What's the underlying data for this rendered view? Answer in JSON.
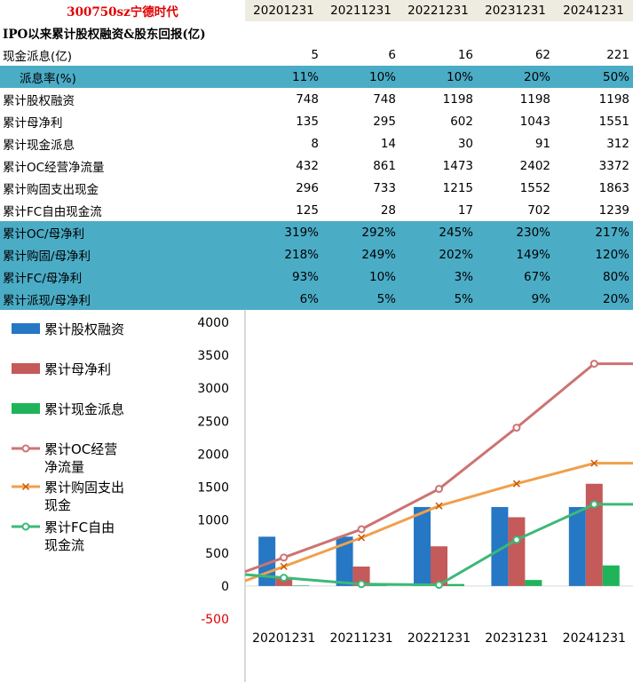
{
  "stock_title": "300750sz宁德时代",
  "years": [
    "20201231",
    "20211231",
    "20221231",
    "20231231",
    "20241231"
  ],
  "section_title": "IPO以来累计股权融资&股东回报(亿)",
  "rows": [
    {
      "label": "现金派息(亿)",
      "values": [
        "5",
        "6",
        "16",
        "62",
        "221"
      ],
      "highlight": false,
      "indent": false
    },
    {
      "label": "派息率(%)",
      "values": [
        "11%",
        "10%",
        "10%",
        "20%",
        "50%"
      ],
      "highlight": true,
      "indent": true
    },
    {
      "label": "累计股权融资",
      "values": [
        "748",
        "748",
        "1198",
        "1198",
        "1198"
      ],
      "highlight": false,
      "indent": false
    },
    {
      "label": "累计母净利",
      "values": [
        "135",
        "295",
        "602",
        "1043",
        "1551"
      ],
      "highlight": false,
      "indent": false
    },
    {
      "label": "累计现金派息",
      "values": [
        "8",
        "14",
        "30",
        "91",
        "312"
      ],
      "highlight": false,
      "indent": false
    },
    {
      "label": "累计OC经营净流量",
      "values": [
        "432",
        "861",
        "1473",
        "2402",
        "3372"
      ],
      "highlight": false,
      "indent": false
    },
    {
      "label": "累计购固支出现金",
      "values": [
        "296",
        "733",
        "1215",
        "1552",
        "1863"
      ],
      "highlight": false,
      "indent": false
    },
    {
      "label": "累计FC自由现金流",
      "values": [
        "125",
        "28",
        "17",
        "702",
        "1239"
      ],
      "highlight": false,
      "indent": false
    },
    {
      "label": "累计OC/母净利",
      "values": [
        "319%",
        "292%",
        "245%",
        "230%",
        "217%"
      ],
      "highlight": true,
      "indent": false
    },
    {
      "label": "累计购固/母净利",
      "values": [
        "218%",
        "249%",
        "202%",
        "149%",
        "120%"
      ],
      "highlight": true,
      "indent": false
    },
    {
      "label": "累计FC/母净利",
      "values": [
        "93%",
        "10%",
        "3%",
        "67%",
        "80%"
      ],
      "highlight": true,
      "indent": false
    },
    {
      "label": "累计派现/母净利",
      "values": [
        "6%",
        "5%",
        "5%",
        "9%",
        "20%"
      ],
      "highlight": true,
      "indent": false
    }
  ],
  "chart_data": {
    "type": "bar",
    "categories": [
      "20201231",
      "20211231",
      "20221231",
      "20231231",
      "20241231"
    ],
    "ylim": [
      -500,
      4000
    ],
    "yticks": [
      -500,
      0,
      500,
      1000,
      1500,
      2000,
      2500,
      3000,
      3500,
      4000
    ],
    "grid": false,
    "legend_position": "left",
    "series": [
      {
        "name": "累计股权融资",
        "kind": "bar",
        "color": "#2677c4",
        "values": [
          748,
          748,
          1198,
          1198,
          1198
        ]
      },
      {
        "name": "累计母净利",
        "kind": "bar",
        "color": "#c55a5a",
        "values": [
          135,
          295,
          602,
          1043,
          1551
        ]
      },
      {
        "name": "累计现金派息",
        "kind": "bar",
        "color": "#1fb45a",
        "values": [
          8,
          14,
          30,
          91,
          312
        ]
      },
      {
        "name": "累计OC经营净流量",
        "kind": "line",
        "marker": "circle",
        "color": "#cd7373",
        "values": [
          432,
          861,
          1473,
          2402,
          3372
        ]
      },
      {
        "name": "累计购固支出现金",
        "kind": "line",
        "marker": "x",
        "color": "#f0a04b",
        "values": [
          296,
          733,
          1215,
          1552,
          1863
        ]
      },
      {
        "name": "累计FC自由现金流",
        "kind": "line",
        "marker": "circle",
        "color": "#3cb878",
        "values": [
          125,
          28,
          17,
          702,
          1239
        ]
      }
    ]
  }
}
